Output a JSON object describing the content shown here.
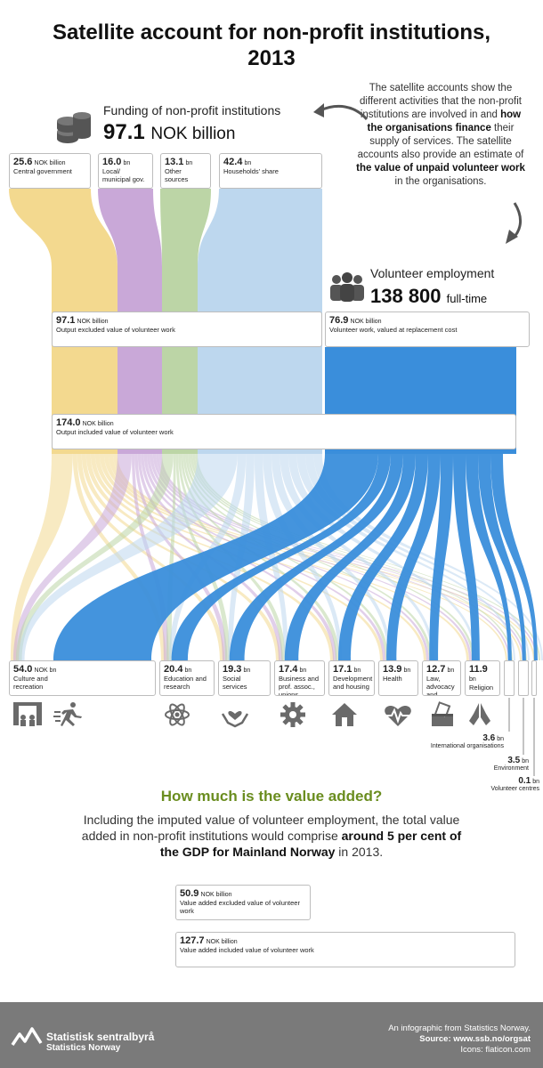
{
  "title": {
    "line1": "Satellite account for non-profit institutions,",
    "line2": "2013"
  },
  "intro": {
    "p1": "The satellite accounts show the different activities that the non-profit institutions are involved in and ",
    "b1": "how the organisations finance",
    "p2": " their supply of services. The satellite accounts also provide an estimate of ",
    "b2": "the value of unpaid volunteer work",
    "p3": " in the organisations."
  },
  "funding": {
    "heading": "Funding of non-profit institutions",
    "value": "97.1",
    "unit": "NOK billion"
  },
  "volunteer": {
    "heading": "Volunteer employment",
    "value": "138 800",
    "unit": "full-time equivalents"
  },
  "colors": {
    "central": "#f3d98f",
    "local": "#c9a8d8",
    "other": "#bcd5a6",
    "households": "#bdd7ee",
    "volunteer": "#3a8edb"
  },
  "chart_data": {
    "type": "sankey",
    "sources": [
      {
        "value": "25.6",
        "unit": "NOK billion",
        "label": "Central government",
        "key": "central"
      },
      {
        "value": "16.0",
        "unit": "bn",
        "label": "Local/ municipal gov.",
        "key": "local"
      },
      {
        "value": "13.1",
        "unit": "bn",
        "label": "Other sources",
        "key": "other"
      },
      {
        "value": "42.4",
        "unit": "bn",
        "label": "Households' share",
        "key": "households"
      }
    ],
    "volunteer_work": {
      "value": "76.9",
      "unit": "NOK billion",
      "label": "Volunteer work, valued at replacement cost"
    },
    "output_excl": {
      "value": "97.1",
      "unit": "NOK billion",
      "label": "Output excluded value of volunteer work"
    },
    "output_incl": {
      "value": "174.0",
      "unit": "NOK billion",
      "label": "Output included value of volunteer work"
    },
    "sectors": [
      {
        "value": "54.0",
        "unit": "NOK bn",
        "label": "Culture and recreation"
      },
      {
        "value": "20.4",
        "unit": "bn",
        "label": "Education and research"
      },
      {
        "value": "19.3",
        "unit": "bn",
        "label": "Social services"
      },
      {
        "value": "17.4",
        "unit": "bn",
        "label": "Business and prof. assoc., unions"
      },
      {
        "value": "17.1",
        "unit": "bn",
        "label": "Development and housing"
      },
      {
        "value": "13.9",
        "unit": "bn",
        "label": "Health"
      },
      {
        "value": "12.7",
        "unit": "bn",
        "label": "Law, advocacy and politics"
      },
      {
        "value": "11.9",
        "unit": "bn",
        "label": "Religion"
      }
    ],
    "small_sectors": [
      {
        "value": "3.6",
        "unit": "bn",
        "label": "International organisations"
      },
      {
        "value": "3.5",
        "unit": "bn",
        "label": "Environment"
      },
      {
        "value": "0.1",
        "unit": "bn",
        "label": "Volunteer centres"
      }
    ]
  },
  "value_added": {
    "heading": "How much is the value added?",
    "p1": "Including the imputed value of volunteer employment, the total value added in non-profit institutions would comprise ",
    "b1": "around 5 per cent of the GDP for Mainland Norway",
    "p2": " in 2013.",
    "excl": {
      "value": "50.9",
      "unit": "NOK billion",
      "label": "Value added excluded value of volunteer work"
    },
    "incl": {
      "value": "127.7",
      "unit": "NOK billion",
      "label": "Value added included value of volunteer work"
    }
  },
  "footer": {
    "name": "Statistisk sentralbyrå",
    "name_en": "Statistics Norway",
    "line1": "An infographic from Statistics Norway.",
    "source_label": "Source:",
    "source": "www.ssb.no/orgsat",
    "icons": "Icons: flaticon.com"
  }
}
